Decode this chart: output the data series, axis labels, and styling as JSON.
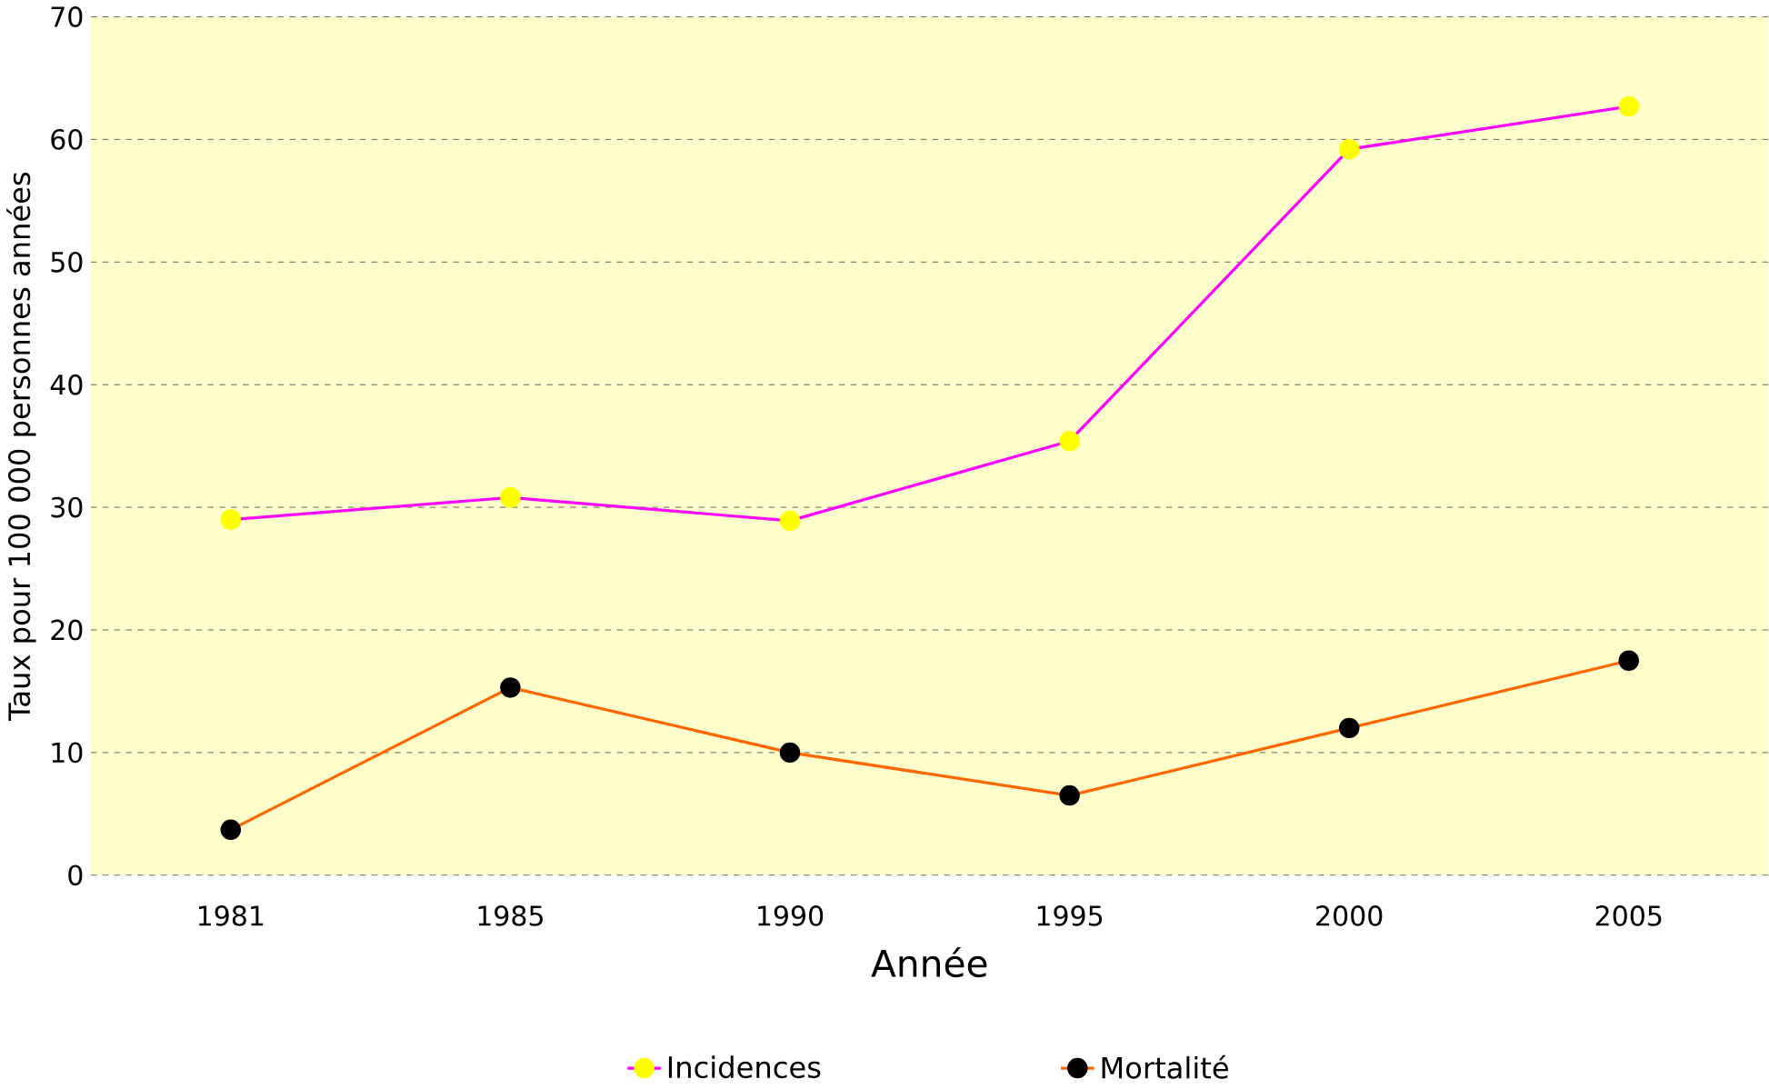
{
  "chart_data": {
    "type": "line",
    "xlabel": "Année",
    "ylabel": "Taux pour 100 000 personnes années",
    "categories": [
      "1981",
      "1985",
      "1990",
      "1995",
      "2000",
      "2005"
    ],
    "series": [
      {
        "name": "Incidences",
        "color": "#ff00ff",
        "colors": [
          "#ffff00",
          "#ffff00",
          "#ffff00",
          "#ffff00",
          "#ffff00",
          "#ffff00"
        ],
        "values": [
          29.0,
          30.8,
          28.9,
          35.4,
          59.2,
          62.7
        ]
      },
      {
        "name": "Mortalité",
        "color": "#ff6600",
        "colors": [
          "#000000",
          "#000000",
          "#000000",
          "#000000",
          "#000000",
          "#000000"
        ],
        "values": [
          3.7,
          15.3,
          10.0,
          6.5,
          12.0,
          17.5
        ]
      }
    ],
    "ylim": [
      0,
      70
    ],
    "yticks": [
      0,
      10,
      20,
      30,
      40,
      50,
      60,
      70
    ],
    "grid": "y",
    "legend": "bottom",
    "marker": "circle",
    "line_style": "solid"
  }
}
